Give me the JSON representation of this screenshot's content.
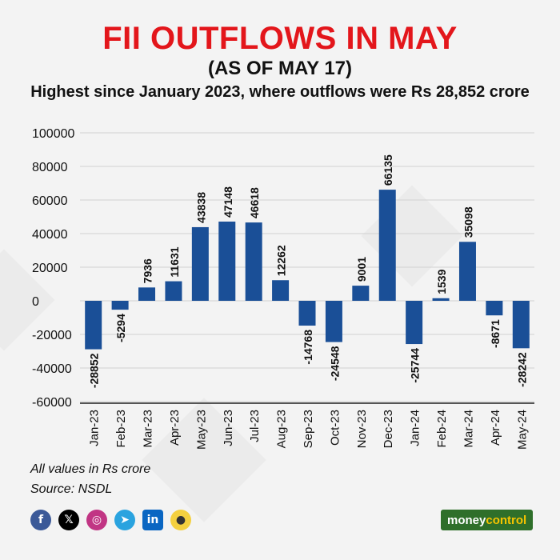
{
  "title": "FII OUTFLOWS IN MAY",
  "subtitle": "(AS OF MAY 17)",
  "note": "Highest since January 2023, where outflows were Rs 28,852 crore",
  "footnote_units": "All values in Rs crore",
  "footnote_source": "Source: NSDL",
  "colors": {
    "title": "#e3161b",
    "bar": "#1a4f97",
    "text": "#111111"
  },
  "socials": [
    "facebook-icon",
    "x-icon",
    "instagram-icon",
    "telegram-icon",
    "linkedin-icon",
    "koo-icon"
  ],
  "brand": {
    "part1": "money",
    "part2": "control"
  },
  "chart_data": {
    "type": "bar",
    "categories": [
      "Jan-23",
      "Feb-23",
      "Mar-23",
      "Apr-23",
      "May-23",
      "Jun-23",
      "Jul-23",
      "Aug-23",
      "Sep-23",
      "Oct-23",
      "Nov-23",
      "Dec-23",
      "Jan-24",
      "Feb-24",
      "Mar-24",
      "Apr-24",
      "May-24"
    ],
    "values": [
      -28852,
      -5294,
      7936,
      11631,
      43838,
      47148,
      46618,
      12262,
      -14768,
      -24548,
      9001,
      66135,
      -25744,
      1539,
      35098,
      -8671,
      -28242
    ],
    "yticks": [
      100000,
      80000,
      60000,
      40000,
      20000,
      0,
      -20000,
      -40000,
      -60000
    ],
    "ylim": [
      -60000,
      100000
    ],
    "grid": true,
    "xlabel": "",
    "ylabel": ""
  }
}
